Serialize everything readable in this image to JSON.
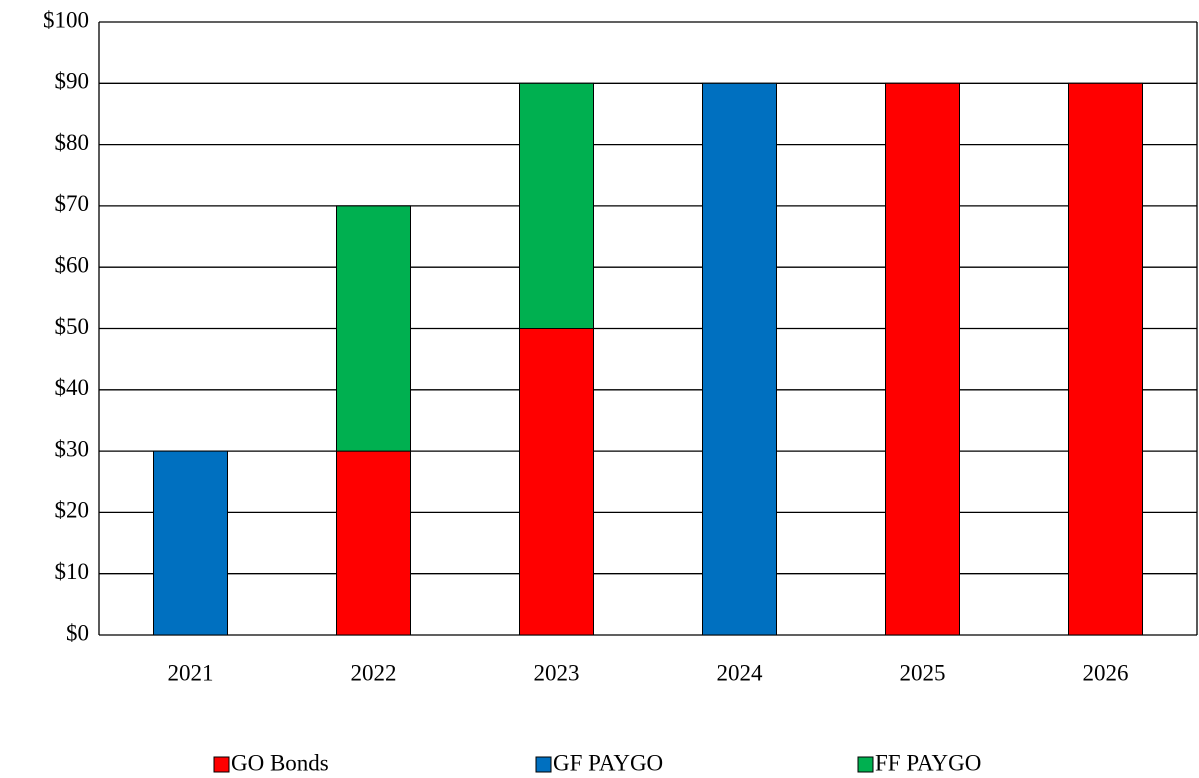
{
  "chart_data": {
    "type": "stacked-bar",
    "categories": [
      "2021",
      "2022",
      "2023",
      "2024",
      "2025",
      "2026"
    ],
    "series": [
      {
        "name": "GO Bonds",
        "color": "#ff0000",
        "values": [
          0,
          30,
          50,
          0,
          90,
          90
        ]
      },
      {
        "name": "GF PAYGO",
        "color": "#0070c0",
        "values": [
          30,
          0,
          0,
          90,
          0,
          0
        ]
      },
      {
        "name": "FF PAYGO",
        "color": "#00b050",
        "values": [
          0,
          40,
          40,
          0,
          0,
          0
        ]
      }
    ],
    "ylim": [
      0,
      100
    ],
    "yticks": [
      {
        "value": 0,
        "label": "$0"
      },
      {
        "value": 10,
        "label": "$10"
      },
      {
        "value": 20,
        "label": "$20"
      },
      {
        "value": 30,
        "label": "$30"
      },
      {
        "value": 40,
        "label": "$40"
      },
      {
        "value": 50,
        "label": "$50"
      },
      {
        "value": 60,
        "label": "$60"
      },
      {
        "value": 70,
        "label": "$70"
      },
      {
        "value": 80,
        "label": "$80"
      },
      {
        "value": 90,
        "label": "$90"
      },
      {
        "value": 100,
        "label": "$100"
      }
    ],
    "grid": true,
    "legend": "bottom"
  }
}
